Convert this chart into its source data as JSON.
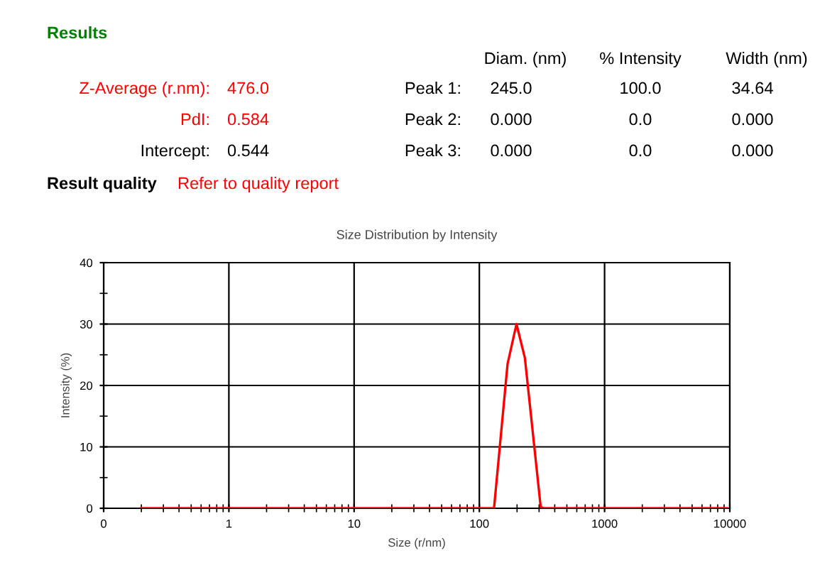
{
  "chart_data": {
    "type": "line",
    "title": "Size Distribution by Intensity",
    "xlabel": "Size (r/nm)",
    "ylabel": "Intensity (%)",
    "x": [
      0.2,
      131,
      168,
      198,
      231,
      309,
      330,
      1000,
      9500
    ],
    "series": [
      {
        "color": "#ff0000",
        "values": [
          0,
          0,
          23.5,
          30,
          24.5,
          0.2,
          0,
          0,
          0
        ]
      }
    ],
    "log": "x",
    "xlim": [
      0.1,
      10000
    ],
    "xticks": [
      {
        "value": 0.1,
        "label": "0"
      },
      1,
      10,
      100,
      1000,
      10000
    ],
    "ylim": [
      0,
      40
    ],
    "yticks": [
      0,
      10,
      20,
      30,
      40
    ],
    "grid": true,
    "legend": false,
    "marker": "none",
    "line_style": "solid",
    "annotations": [
      "Results",
      "Diam. (nm)",
      "% Intensity",
      "Width (nm)",
      "Z-Average (r.nm):",
      "476.0",
      "Peak 1:",
      "245.0",
      "100.0",
      "34.64",
      "PdI:",
      "0.584",
      "Peak 2:",
      "0.000",
      "0.0",
      "0.000",
      "Intercept:",
      "0.544",
      "Peak 3:",
      "0.000",
      "0.0",
      "0.000",
      "Result quality",
      "Refer to quality report"
    ]
  }
}
